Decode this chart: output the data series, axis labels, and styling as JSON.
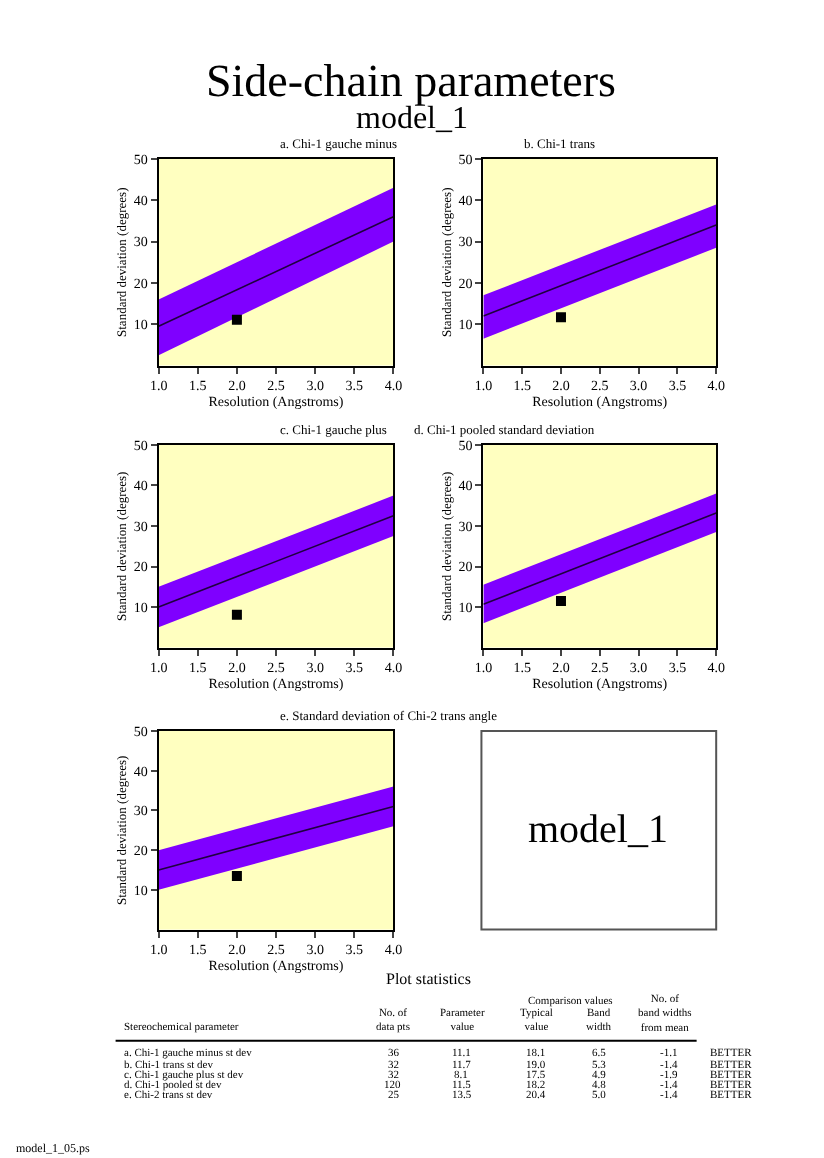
{
  "chart_data": [
    {
      "type": "line",
      "title": "a. Chi-1 gauche minus",
      "xlabel": "Resolution (Angstroms)",
      "ylabel": "Standard deviation (degrees)",
      "xlim": [
        1,
        4
      ],
      "ylim": [
        0,
        50
      ],
      "xticks": [
        {
          "value": 1,
          "label": "1.0"
        },
        {
          "value": 1.5,
          "label": "1.5"
        },
        {
          "value": 2,
          "label": "2.0"
        },
        {
          "value": 2.5,
          "label": "2.5"
        },
        {
          "value": 3,
          "label": "3.0"
        },
        {
          "value": 3.5,
          "label": "3.5"
        },
        {
          "value": 4,
          "label": "4.0"
        }
      ],
      "yticks": [
        10,
        20,
        30,
        40,
        50
      ],
      "grid": false,
      "series": [
        {
          "color": "#200040",
          "x": [
            1,
            4
          ],
          "values": [
            9.5,
            36
          ],
          "lower": [
            2.5,
            30
          ],
          "upper": [
            16,
            43
          ]
        },
        {
          "type": "scatter",
          "marker": "square",
          "color": "#000000",
          "x": [
            2
          ],
          "values": [
            11.1
          ]
        }
      ]
    },
    {
      "type": "line",
      "title": "b. Chi-1 trans",
      "xlabel": "Resolution (Angstroms)",
      "ylabel": "Standard deviation (degrees)",
      "xlim": [
        1,
        4
      ],
      "ylim": [
        0,
        50
      ],
      "xticks": [
        {
          "value": 1,
          "label": "1.0"
        },
        {
          "value": 1.5,
          "label": "1.5"
        },
        {
          "value": 2,
          "label": "2.0"
        },
        {
          "value": 2.5,
          "label": "2.5"
        },
        {
          "value": 3,
          "label": "3.0"
        },
        {
          "value": 3.5,
          "label": "3.5"
        },
        {
          "value": 4,
          "label": "4.0"
        }
      ],
      "yticks": [
        10,
        20,
        30,
        40,
        50
      ],
      "grid": false,
      "series": [
        {
          "color": "#200040",
          "x": [
            1,
            4
          ],
          "values": [
            12,
            34
          ],
          "lower": [
            6.5,
            28.5
          ],
          "upper": [
            17,
            39
          ]
        },
        {
          "type": "scatter",
          "marker": "square",
          "color": "#000000",
          "x": [
            2
          ],
          "values": [
            11.7
          ]
        }
      ]
    },
    {
      "type": "line",
      "title": "c. Chi-1 gauche plus",
      "xlabel": "Resolution (Angstroms)",
      "ylabel": "Standard deviation (degrees)",
      "xlim": [
        1,
        4
      ],
      "ylim": [
        0,
        50
      ],
      "xticks": [
        {
          "value": 1,
          "label": "1.0"
        },
        {
          "value": 1.5,
          "label": "1.5"
        },
        {
          "value": 2,
          "label": "2.0"
        },
        {
          "value": 2.5,
          "label": "2.5"
        },
        {
          "value": 3,
          "label": "3.0"
        },
        {
          "value": 3.5,
          "label": "3.5"
        },
        {
          "value": 4,
          "label": "4.0"
        }
      ],
      "yticks": [
        10,
        20,
        30,
        40,
        50
      ],
      "grid": false,
      "series": [
        {
          "color": "#200040",
          "x": [
            1,
            4
          ],
          "values": [
            10,
            32.5
          ],
          "lower": [
            5,
            27.5
          ],
          "upper": [
            15,
            37.5
          ]
        },
        {
          "type": "scatter",
          "marker": "square",
          "color": "#000000",
          "x": [
            2
          ],
          "values": [
            8.1
          ]
        }
      ]
    },
    {
      "type": "line",
      "title": "d. Chi-1 pooled standard deviation",
      "xlabel": "Resolution (Angstroms)",
      "ylabel": "Standard deviation (degrees)",
      "xlim": [
        1,
        4
      ],
      "ylim": [
        0,
        50
      ],
      "xticks": [
        {
          "value": 1,
          "label": "1.0"
        },
        {
          "value": 1.5,
          "label": "1.5"
        },
        {
          "value": 2,
          "label": "2.0"
        },
        {
          "value": 2.5,
          "label": "2.5"
        },
        {
          "value": 3,
          "label": "3.0"
        },
        {
          "value": 3.5,
          "label": "3.5"
        },
        {
          "value": 4,
          "label": "4.0"
        }
      ],
      "yticks": [
        10,
        20,
        30,
        40,
        50
      ],
      "grid": false,
      "series": [
        {
          "color": "#200040",
          "x": [
            1,
            4
          ],
          "values": [
            10.7,
            33.2
          ],
          "lower": [
            6,
            28.5
          ],
          "upper": [
            15.5,
            38
          ]
        },
        {
          "type": "scatter",
          "marker": "square",
          "color": "#000000",
          "x": [
            2
          ],
          "values": [
            11.5
          ]
        }
      ]
    },
    {
      "type": "line",
      "title": "e. Standard deviation of Chi-2 trans angle",
      "xlabel": "Resolution (Angstroms)",
      "ylabel": "Standard deviation (degrees)",
      "xlim": [
        1,
        4
      ],
      "ylim": [
        0,
        50
      ],
      "xticks": [
        {
          "value": 1,
          "label": "1.0"
        },
        {
          "value": 1.5,
          "label": "1.5"
        },
        {
          "value": 2,
          "label": "2.0"
        },
        {
          "value": 2.5,
          "label": "2.5"
        },
        {
          "value": 3,
          "label": "3.0"
        },
        {
          "value": 3.5,
          "label": "3.5"
        },
        {
          "value": 4,
          "label": "4.0"
        }
      ],
      "yticks": [
        10,
        20,
        30,
        40,
        50
      ],
      "grid": false,
      "series": [
        {
          "color": "#200040",
          "x": [
            1,
            4
          ],
          "values": [
            15,
            31
          ],
          "lower": [
            10,
            26
          ],
          "upper": [
            20,
            36
          ]
        },
        {
          "type": "scatter",
          "marker": "square",
          "color": "#000000",
          "x": [
            2
          ],
          "values": [
            13.5
          ]
        }
      ]
    },
    {
      "type": "other",
      "title": "Side-chain parameters",
      "subtitle": "model_1",
      "annotations": [
        "model_1",
        "Plot statistics",
        "Comparison values",
        "Stereochemical parameter",
        "No. of\ndata pts",
        "Parameter\nvalue",
        "Typical\nvalue",
        "Band\nwidth",
        "No. of\nband widths\nfrom mean",
        "a. Chi-1 gauche minus st dev",
        "36",
        "11.1",
        "18.1",
        "6.5",
        "-1.1",
        "BETTER",
        "b. Chi-1 trans st dev",
        "32",
        "11.7",
        "19.0",
        "5.3",
        "-1.4",
        "BETTER",
        "c. Chi-1 gauche plus st dev",
        "32",
        "8.1",
        "17.5",
        "4.9",
        "-1.9",
        "BETTER",
        "d. Chi-1 pooled st dev",
        "120",
        "11.5",
        "18.2",
        "4.8",
        "-1.4",
        "BETTER",
        "e. Chi-2 trans st dev",
        "25",
        "13.5",
        "20.4",
        "5.0",
        "-1.4",
        "BETTER",
        "model_1_05.ps"
      ]
    }
  ]
}
